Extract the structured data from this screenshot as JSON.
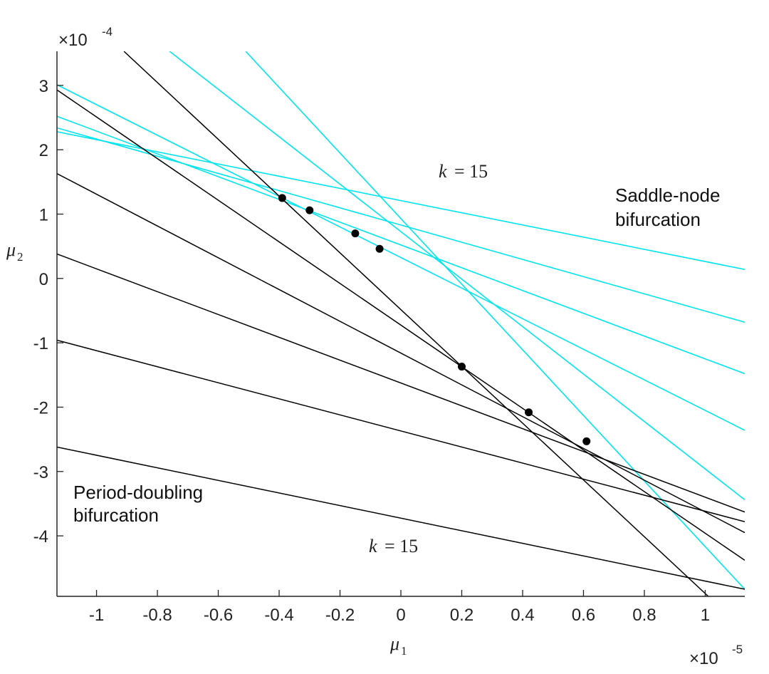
{
  "chart_data": {
    "type": "line",
    "title": "",
    "xlabel": "μ",
    "xlabel_sub": "1",
    "ylabel": "μ",
    "ylabel_sub": "2",
    "x_multiplier": "×10",
    "x_multiplier_exp": "-5",
    "y_multiplier": "×10",
    "y_multiplier_exp": "-4",
    "xlim": [
      -1.13,
      1.13
    ],
    "ylim": [
      -4.94,
      3.53
    ],
    "xticks": [
      -1,
      -0.8,
      -0.6,
      -0.4,
      -0.2,
      0,
      0.2,
      0.4,
      0.6,
      0.8,
      1
    ],
    "xtick_labels": [
      "-1",
      "-0.8",
      "-0.6",
      "-0.4",
      "-0.2",
      "0",
      "0.2",
      "0.4",
      "0.6",
      "0.8",
      "1"
    ],
    "yticks": [
      -4,
      -3,
      -2,
      -1,
      0,
      1,
      2,
      3
    ],
    "ytick_labels": [
      "-4",
      "-3",
      "-2",
      "-1",
      "0",
      "1",
      "2",
      "3"
    ],
    "grid": false,
    "colors": {
      "black_lines": "#000000",
      "cyan_lines": "#00e5ee",
      "points": "#000000",
      "axis": "#222222"
    },
    "black_lines": [
      {
        "x": [
          -0.91,
          1.01
        ],
        "y": [
          3.53,
          -4.94
        ]
      },
      {
        "x": [
          -1.13,
          1.13
        ],
        "y": [
          2.93,
          -4.38
        ]
      },
      {
        "x": [
          -1.13,
          1.13
        ],
        "y": [
          1.63,
          -3.95
        ]
      },
      {
        "x": [
          -1.13,
          1.13
        ],
        "y": [
          0.38,
          -3.63
        ]
      },
      {
        "x": [
          -1.13,
          1.13
        ],
        "y": [
          -0.96,
          -3.78
        ]
      },
      {
        "x": [
          -1.13,
          1.13
        ],
        "y": [
          -2.62,
          -4.83
        ]
      }
    ],
    "cyan_lines": [
      {
        "x": [
          -0.76,
          1.13
        ],
        "y": [
          3.53,
          -3.44
        ]
      },
      {
        "x": [
          -0.51,
          1.13
        ],
        "y": [
          3.53,
          -4.83
        ]
      },
      {
        "x": [
          -1.13,
          1.13
        ],
        "y": [
          3.01,
          -2.36
        ]
      },
      {
        "x": [
          -1.13,
          1.13
        ],
        "y": [
          2.52,
          -1.48
        ]
      },
      {
        "x": [
          -1.13,
          1.13
        ],
        "y": [
          2.34,
          -0.68
        ]
      },
      {
        "x": [
          -1.13,
          1.13
        ],
        "y": [
          2.28,
          0.14
        ]
      }
    ],
    "points": [
      {
        "x": -0.39,
        "y": 1.25
      },
      {
        "x": -0.3,
        "y": 1.06
      },
      {
        "x": -0.15,
        "y": 0.7
      },
      {
        "x": -0.07,
        "y": 0.46
      },
      {
        "x": 0.2,
        "y": -1.37
      },
      {
        "x": 0.42,
        "y": -2.08
      },
      {
        "x": 0.61,
        "y": -2.53
      }
    ],
    "annotations": [
      {
        "id": "k-top",
        "lhs": "k",
        "rhs": "= 15",
        "x": 0.15,
        "y": 1.62
      },
      {
        "id": "k-bottom",
        "lhs": "k",
        "rhs": "= 15",
        "x": -0.11,
        "y": -4.23
      }
    ],
    "region_labels": {
      "saddle_node": [
        "Saddle-node",
        "bifurcation"
      ],
      "period_doubling": [
        "Period-doubling",
        "bifurcation"
      ]
    }
  }
}
